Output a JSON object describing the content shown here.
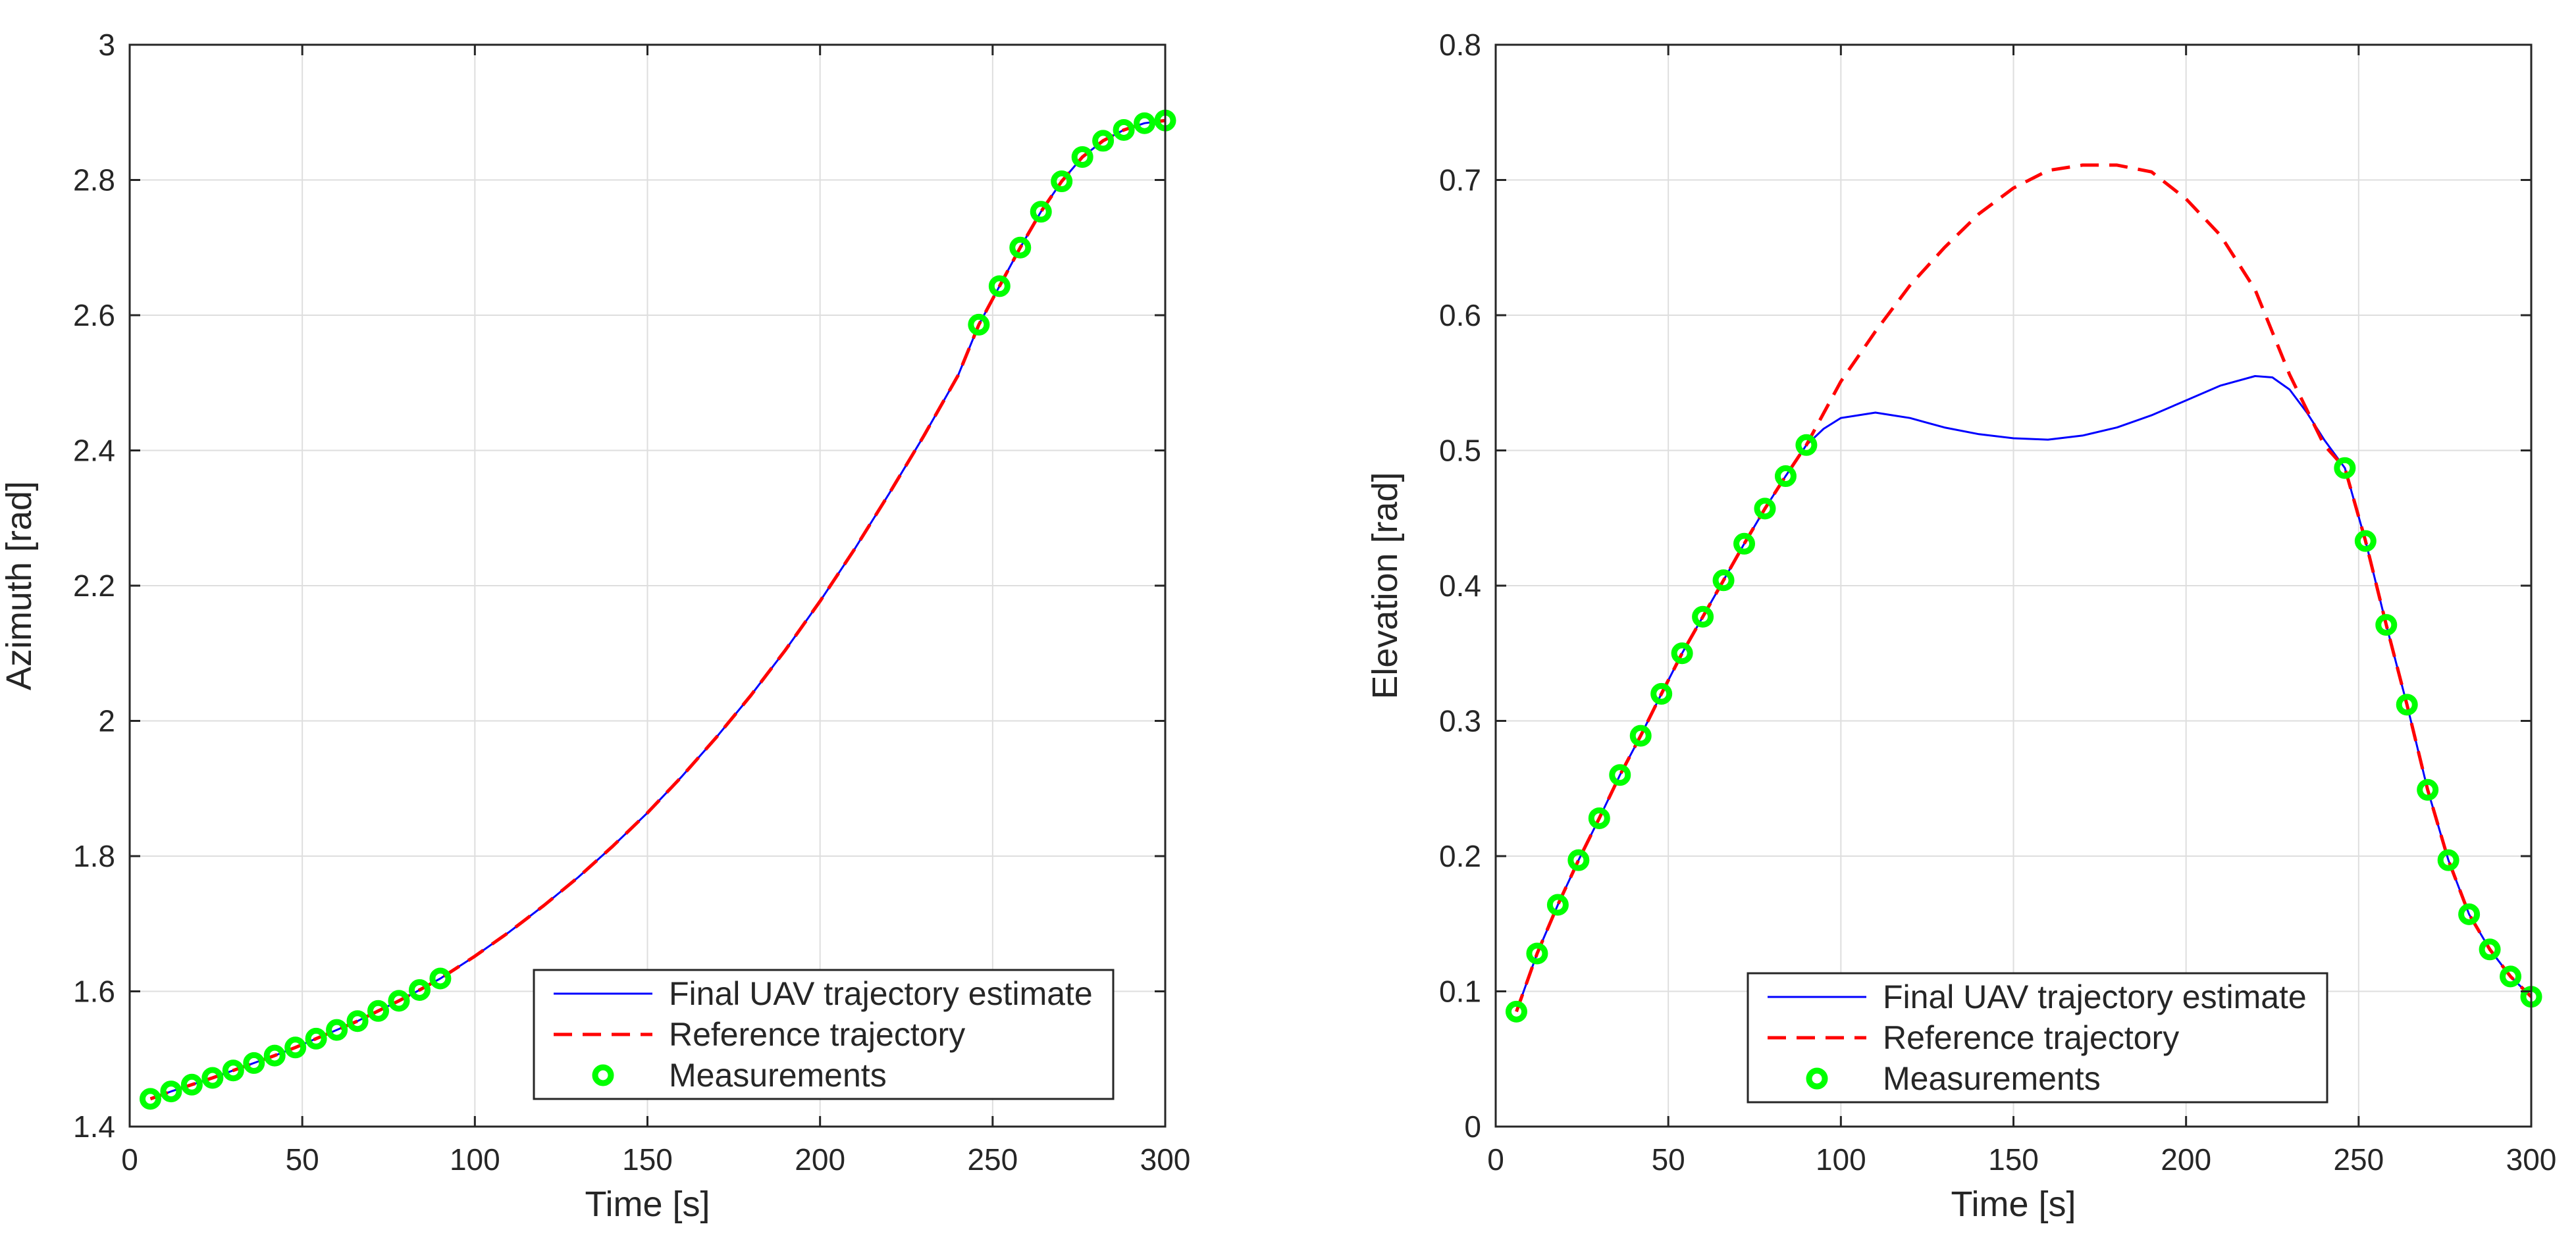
{
  "chart_data": [
    {
      "type": "line",
      "name": "azimuth",
      "xlabel": "Time [s]",
      "ylabel": "Azimuth [rad]",
      "xlim": [
        0,
        300
      ],
      "ylim": [
        1.4,
        3.0
      ],
      "xticks": [
        0,
        50,
        100,
        150,
        200,
        250,
        300
      ],
      "yticks": [
        1.4,
        1.6,
        1.8,
        2.0,
        2.2,
        2.4,
        2.6,
        2.8,
        3.0
      ],
      "xtick_labels": [
        "0",
        "50",
        "100",
        "150",
        "200",
        "250",
        "300"
      ],
      "ytick_labels": [
        "1.4",
        "1.6",
        "1.8",
        "2",
        "2.2",
        "2.4",
        "2.6",
        "2.8",
        "3"
      ],
      "grid": true,
      "legend_position": "bottom-right",
      "legend": [
        "Final UAV trajectory estimate",
        "Reference trajectory",
        "Measurements"
      ],
      "series": [
        {
          "name": "Final UAV trajectory estimate",
          "style": "solid",
          "color": "#0000ff",
          "x": [
            6,
            12,
            18,
            24,
            30,
            36,
            42,
            48,
            54,
            60,
            66,
            72,
            78,
            84,
            90,
            100,
            110,
            120,
            130,
            140,
            150,
            160,
            170,
            180,
            190,
            200,
            210,
            220,
            230,
            240,
            246,
            252,
            258,
            264,
            270,
            276,
            282,
            288,
            294,
            300
          ],
          "y": [
            1.441,
            1.452,
            1.462,
            1.472,
            1.483,
            1.494,
            1.505,
            1.517,
            1.53,
            1.543,
            1.556,
            1.571,
            1.586,
            1.602,
            1.619,
            1.652,
            1.688,
            1.727,
            1.769,
            1.815,
            1.864,
            1.918,
            1.976,
            2.038,
            2.105,
            2.177,
            2.254,
            2.336,
            2.421,
            2.511,
            2.586,
            2.643,
            2.7,
            2.753,
            2.798,
            2.834,
            2.858,
            2.874,
            2.884,
            2.888
          ]
        },
        {
          "name": "Reference trajectory",
          "style": "dashed",
          "color": "#ff0000",
          "x": [
            6,
            12,
            18,
            24,
            30,
            36,
            42,
            48,
            54,
            60,
            66,
            72,
            78,
            84,
            90,
            100,
            110,
            120,
            130,
            140,
            150,
            160,
            170,
            180,
            190,
            200,
            210,
            220,
            230,
            240,
            246,
            252,
            258,
            264,
            270,
            276,
            282,
            288,
            294,
            300
          ],
          "y": [
            1.441,
            1.452,
            1.462,
            1.472,
            1.483,
            1.494,
            1.505,
            1.517,
            1.53,
            1.543,
            1.556,
            1.571,
            1.586,
            1.602,
            1.619,
            1.652,
            1.688,
            1.727,
            1.769,
            1.815,
            1.864,
            1.918,
            1.976,
            2.038,
            2.105,
            2.177,
            2.254,
            2.336,
            2.421,
            2.511,
            2.586,
            2.643,
            2.7,
            2.753,
            2.798,
            2.834,
            2.858,
            2.874,
            2.884,
            2.888
          ]
        },
        {
          "name": "Measurements",
          "style": "marker",
          "color": "#00ff00",
          "x": [
            6,
            12,
            18,
            24,
            30,
            36,
            42,
            48,
            54,
            60,
            66,
            72,
            78,
            84,
            90,
            246,
            252,
            258,
            264,
            270,
            276,
            282,
            288,
            294,
            300
          ],
          "y": [
            1.441,
            1.452,
            1.462,
            1.472,
            1.483,
            1.494,
            1.505,
            1.517,
            1.53,
            1.543,
            1.556,
            1.571,
            1.586,
            1.602,
            1.619,
            2.586,
            2.643,
            2.7,
            2.753,
            2.798,
            2.834,
            2.858,
            2.874,
            2.884,
            2.888
          ]
        }
      ]
    },
    {
      "type": "line",
      "name": "elevation",
      "xlabel": "Time [s]",
      "ylabel": "Elevation [rad]",
      "xlim": [
        0,
        300
      ],
      "ylim": [
        0,
        0.8
      ],
      "xticks": [
        0,
        50,
        100,
        150,
        200,
        250,
        300
      ],
      "yticks": [
        0,
        0.1,
        0.2,
        0.3,
        0.4,
        0.5,
        0.6,
        0.7,
        0.8
      ],
      "xtick_labels": [
        "0",
        "50",
        "100",
        "150",
        "200",
        "250",
        "300"
      ],
      "ytick_labels": [
        "0",
        "0.1",
        "0.2",
        "0.3",
        "0.4",
        "0.5",
        "0.6",
        "0.7",
        "0.8"
      ],
      "grid": true,
      "legend_position": "bottom-center",
      "legend": [
        "Final UAV trajectory estimate",
        "Reference trajectory",
        "Measurements"
      ],
      "series": [
        {
          "name": "Final UAV trajectory estimate",
          "style": "solid",
          "color": "#0000ff",
          "x": [
            6,
            12,
            18,
            24,
            30,
            36,
            42,
            48,
            54,
            60,
            66,
            72,
            78,
            84,
            90,
            95,
            100,
            110,
            120,
            130,
            140,
            150,
            160,
            170,
            180,
            190,
            200,
            210,
            220,
            225,
            230,
            235,
            240,
            246,
            252,
            258,
            264,
            270,
            276,
            282,
            288,
            294,
            300
          ],
          "y": [
            0.085,
            0.128,
            0.164,
            0.197,
            0.228,
            0.26,
            0.289,
            0.32,
            0.35,
            0.377,
            0.404,
            0.431,
            0.457,
            0.481,
            0.504,
            0.516,
            0.524,
            0.528,
            0.524,
            0.517,
            0.512,
            0.509,
            0.508,
            0.511,
            0.517,
            0.526,
            0.537,
            0.548,
            0.555,
            0.554,
            0.545,
            0.528,
            0.508,
            0.487,
            0.433,
            0.371,
            0.312,
            0.249,
            0.197,
            0.157,
            0.131,
            0.111,
            0.096
          ]
        },
        {
          "name": "Reference trajectory",
          "style": "dashed",
          "color": "#ff0000",
          "x": [
            6,
            12,
            18,
            24,
            30,
            36,
            42,
            48,
            54,
            60,
            66,
            72,
            78,
            84,
            90,
            100,
            110,
            120,
            130,
            140,
            150,
            160,
            170,
            180,
            190,
            200,
            210,
            220,
            230,
            240,
            246,
            252,
            258,
            264,
            270,
            276,
            282,
            288,
            294,
            300
          ],
          "y": [
            0.085,
            0.128,
            0.164,
            0.197,
            0.228,
            0.26,
            0.289,
            0.32,
            0.35,
            0.377,
            0.404,
            0.431,
            0.457,
            0.481,
            0.504,
            0.551,
            0.588,
            0.622,
            0.65,
            0.675,
            0.694,
            0.707,
            0.711,
            0.711,
            0.706,
            0.686,
            0.659,
            0.619,
            0.556,
            0.504,
            0.487,
            0.433,
            0.371,
            0.312,
            0.249,
            0.197,
            0.157,
            0.131,
            0.111,
            0.096
          ]
        },
        {
          "name": "Measurements",
          "style": "marker",
          "color": "#00ff00",
          "x": [
            6,
            12,
            18,
            24,
            30,
            36,
            42,
            48,
            54,
            60,
            66,
            72,
            78,
            84,
            90,
            246,
            252,
            258,
            264,
            270,
            276,
            282,
            288,
            294,
            300
          ],
          "y": [
            0.085,
            0.128,
            0.164,
            0.197,
            0.228,
            0.26,
            0.289,
            0.32,
            0.35,
            0.377,
            0.404,
            0.431,
            0.457,
            0.481,
            0.504,
            0.487,
            0.433,
            0.371,
            0.312,
            0.249,
            0.197,
            0.157,
            0.131,
            0.111,
            0.096
          ]
        }
      ]
    }
  ]
}
